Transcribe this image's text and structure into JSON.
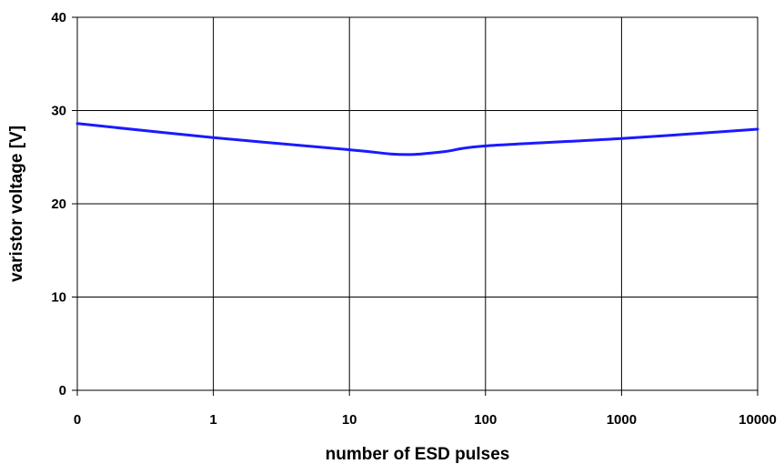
{
  "chart_data": {
    "type": "line",
    "title": "",
    "xlabel": "number of ESD pulses",
    "ylabel": "varistor voltage [V]",
    "x_categories": [
      "0",
      "1",
      "10",
      "100",
      "1000",
      "10000"
    ],
    "y_ticks": [
      "0",
      "10",
      "20",
      "30",
      "40"
    ],
    "ylim": [
      0,
      40
    ],
    "grid": true,
    "series": [
      {
        "color": "#1a1aff",
        "points": [
          {
            "x": 0,
            "y": 28.6
          },
          {
            "x": 1,
            "y": 27.1
          },
          {
            "x": 10,
            "y": 25.8
          },
          {
            "x": 20,
            "y": 25.35
          },
          {
            "x": 30,
            "y": 25.3
          },
          {
            "x": 50,
            "y": 25.6
          },
          {
            "x": 100,
            "y": 26.2
          },
          {
            "x": 1000,
            "y": 27.0
          },
          {
            "x": 10000,
            "y": 28.0
          }
        ]
      }
    ]
  }
}
